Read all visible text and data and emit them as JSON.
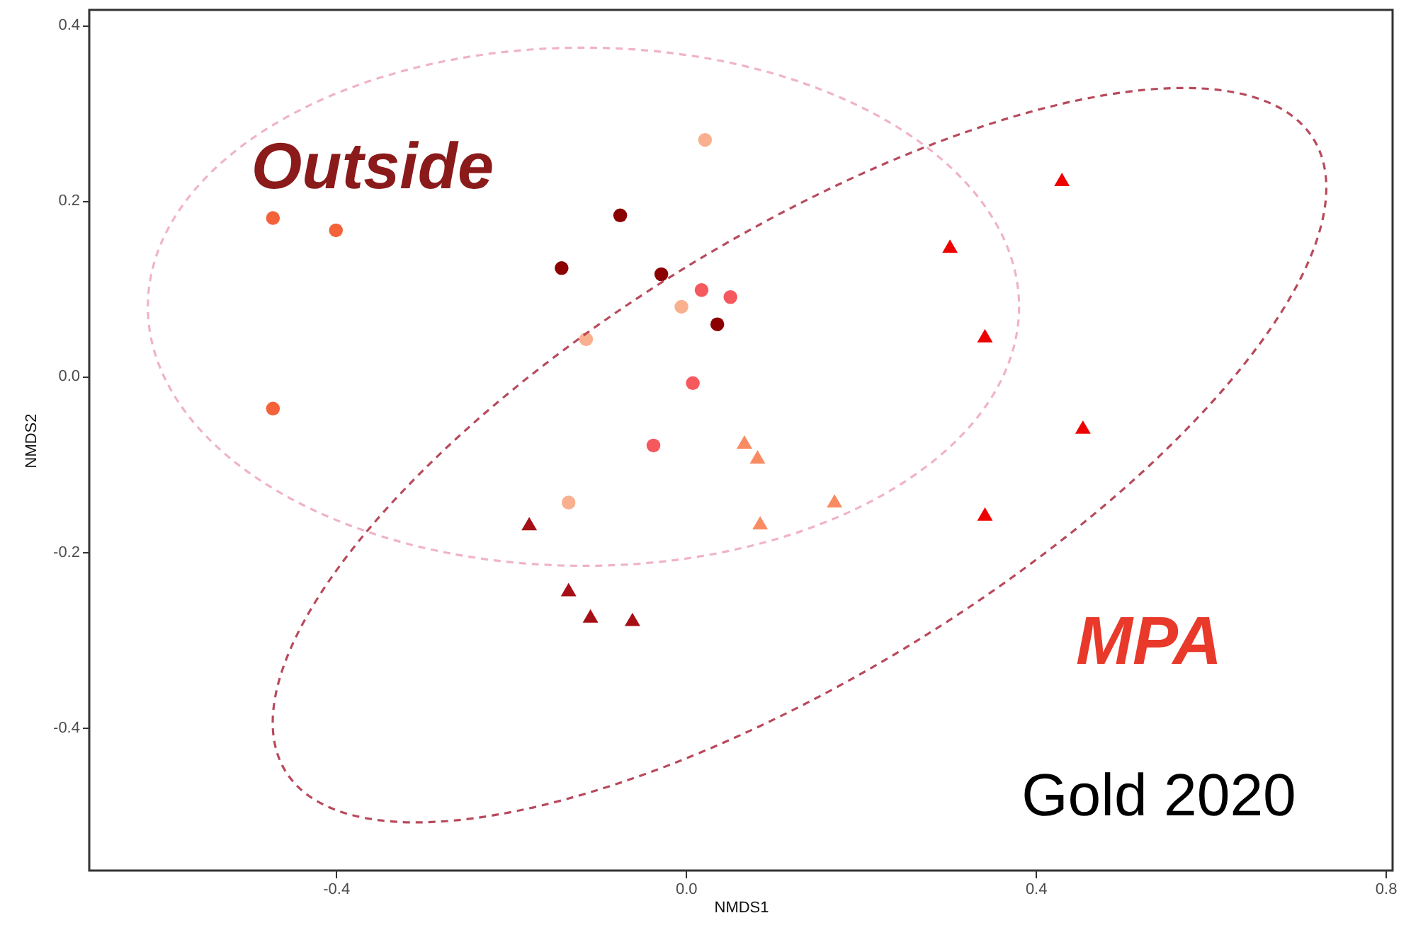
{
  "chart_data": {
    "type": "scatter",
    "xlabel": "NMDS1",
    "ylabel": "NMDS2",
    "xlim": [
      -0.682,
      0.808
    ],
    "ylim": [
      -0.563,
      0.417
    ],
    "xticks": [
      -0.4,
      {
        "value": 0,
        "label": "0.0"
      },
      0.4,
      0.8
    ],
    "yticks": [
      -0.4,
      -0.2,
      {
        "value": 0,
        "label": "0.0"
      },
      0.2,
      0.4
    ],
    "grid": false,
    "annotations": [
      "Outside",
      "MPA",
      "Gold 2020"
    ],
    "series": [
      {
        "marker": "circle",
        "color": "#f4623a",
        "x": [
          -0.472,
          -0.4,
          -0.472
        ],
        "values": [
          0.18,
          0.166,
          -0.037
        ]
      },
      {
        "marker": "circle",
        "color": "#8b0000",
        "x": [
          -0.075,
          -0.142,
          -0.028,
          0.036
        ],
        "values": [
          0.183,
          0.123,
          0.116,
          0.059
        ]
      },
      {
        "marker": "circle",
        "color": "#f5595e",
        "x": [
          0.018,
          0.051,
          0.008,
          -0.037
        ],
        "values": [
          0.098,
          0.09,
          -0.008,
          -0.079
        ]
      },
      {
        "marker": "circle",
        "color": "#f9b08f",
        "x": [
          0.022,
          -0.005,
          -0.114,
          -0.134
        ],
        "values": [
          0.269,
          0.079,
          0.042,
          -0.144
        ]
      },
      {
        "marker": "triangle",
        "color": "#ee0000",
        "x": [
          0.43,
          0.302,
          0.342,
          0.454,
          0.342
        ],
        "values": [
          0.224,
          0.148,
          0.046,
          -0.058,
          -0.157
        ]
      },
      {
        "marker": "triangle",
        "color": "#f98b62",
        "x": [
          0.067,
          0.082,
          0.17,
          0.085
        ],
        "values": [
          -0.075,
          -0.092,
          -0.142,
          -0.167
        ]
      },
      {
        "marker": "triangle",
        "color": "#a50f15",
        "x": [
          -0.179,
          -0.134,
          -0.109,
          -0.061
        ],
        "values": [
          -0.168,
          -0.243,
          -0.273,
          -0.277
        ]
      }
    ]
  }
}
